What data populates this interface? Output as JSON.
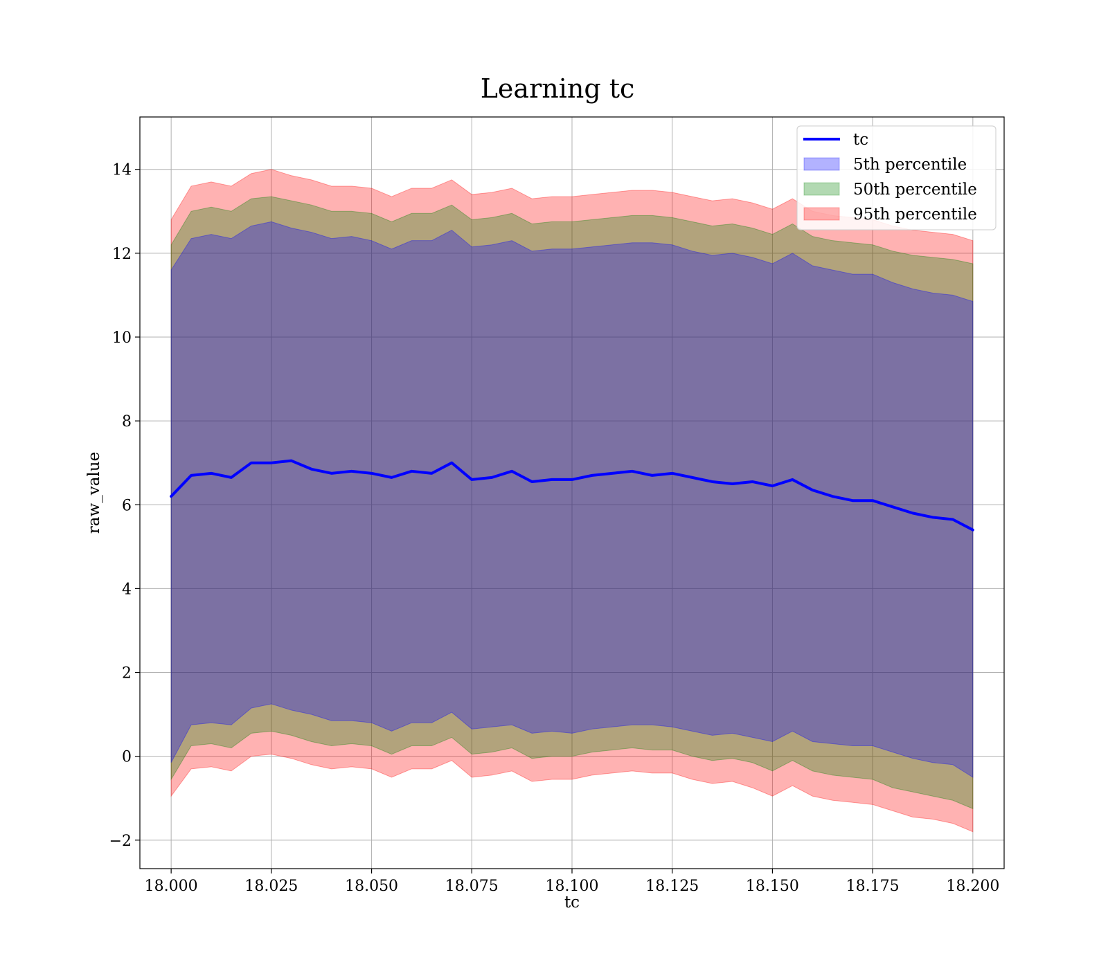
{
  "chart_data": {
    "type": "area",
    "title": "Learning tc",
    "xlabel": "tc",
    "ylabel": "raw_value",
    "xlim": [
      17.9922,
      18.2078
    ],
    "ylim": [
      -2.68,
      15.25
    ],
    "xticks": [
      18.0,
      18.025,
      18.05,
      18.075,
      18.1,
      18.125,
      18.15,
      18.175,
      18.2
    ],
    "xtick_labels": [
      "18.000",
      "18.025",
      "18.050",
      "18.075",
      "18.100",
      "18.125",
      "18.150",
      "18.175",
      "18.200"
    ],
    "yticks": [
      -2,
      0,
      2,
      4,
      6,
      8,
      10,
      12,
      14
    ],
    "ytick_labels": [
      "−2",
      "0",
      "2",
      "4",
      "6",
      "8",
      "10",
      "12",
      "14"
    ],
    "grid": true,
    "legend_position": "top-right",
    "x": [
      18.0,
      18.005,
      18.01,
      18.015,
      18.02,
      18.025,
      18.03,
      18.035,
      18.04,
      18.045,
      18.05,
      18.055,
      18.06,
      18.065,
      18.07,
      18.075,
      18.08,
      18.085,
      18.09,
      18.095,
      18.1,
      18.105,
      18.11,
      18.115,
      18.12,
      18.125,
      18.13,
      18.135,
      18.14,
      18.145,
      18.15,
      18.155,
      18.16,
      18.165,
      18.17,
      18.175,
      18.18,
      18.185,
      18.19,
      18.195,
      18.2
    ],
    "series": [
      {
        "name": "tc",
        "kind": "line",
        "color": "#0000ff",
        "values": [
          6.2,
          6.7,
          6.75,
          6.65,
          7.0,
          7.0,
          7.05,
          6.85,
          6.75,
          6.8,
          6.75,
          6.65,
          6.8,
          6.75,
          7.0,
          6.6,
          6.65,
          6.8,
          6.55,
          6.6,
          6.6,
          6.7,
          6.75,
          6.8,
          6.7,
          6.75,
          6.65,
          6.55,
          6.5,
          6.55,
          6.45,
          6.6,
          6.35,
          6.2,
          6.1,
          6.1,
          5.95,
          5.8,
          5.7,
          5.65,
          5.4
        ]
      },
      {
        "name": "5th percentile",
        "kind": "band",
        "color": "#0000ff",
        "lower": [
          -0.15,
          0.75,
          0.8,
          0.75,
          1.15,
          1.25,
          1.1,
          1.0,
          0.85,
          0.85,
          0.8,
          0.6,
          0.8,
          0.8,
          1.05,
          0.65,
          0.7,
          0.75,
          0.55,
          0.6,
          0.55,
          0.65,
          0.7,
          0.75,
          0.75,
          0.7,
          0.6,
          0.5,
          0.55,
          0.45,
          0.35,
          0.6,
          0.35,
          0.3,
          0.25,
          0.25,
          0.1,
          -0.05,
          -0.15,
          -0.2,
          -0.5
        ],
        "upper": [
          11.6,
          12.35,
          12.45,
          12.35,
          12.65,
          12.75,
          12.6,
          12.5,
          12.35,
          12.4,
          12.3,
          12.1,
          12.3,
          12.3,
          12.55,
          12.15,
          12.2,
          12.3,
          12.05,
          12.1,
          12.1,
          12.15,
          12.2,
          12.25,
          12.25,
          12.2,
          12.05,
          11.95,
          12.0,
          11.9,
          11.75,
          12.0,
          11.7,
          11.6,
          11.5,
          11.5,
          11.3,
          11.15,
          11.05,
          11.0,
          10.85
        ]
      },
      {
        "name": "50th percentile",
        "kind": "band",
        "color": "#008000",
        "lower": [
          -0.55,
          0.25,
          0.3,
          0.2,
          0.55,
          0.6,
          0.5,
          0.35,
          0.25,
          0.3,
          0.25,
          0.05,
          0.25,
          0.25,
          0.45,
          0.05,
          0.1,
          0.2,
          -0.05,
          0.0,
          0.0,
          0.1,
          0.15,
          0.2,
          0.15,
          0.15,
          0.0,
          -0.1,
          -0.05,
          -0.15,
          -0.35,
          -0.1,
          -0.35,
          -0.45,
          -0.5,
          -0.55,
          -0.75,
          -0.85,
          -0.95,
          -1.05,
          -1.25
        ],
        "upper": [
          12.2,
          13.0,
          13.1,
          13.0,
          13.3,
          13.35,
          13.25,
          13.15,
          13.0,
          13.0,
          12.95,
          12.75,
          12.95,
          12.95,
          13.15,
          12.8,
          12.85,
          12.95,
          12.7,
          12.75,
          12.75,
          12.8,
          12.85,
          12.9,
          12.9,
          12.85,
          12.75,
          12.65,
          12.7,
          12.6,
          12.45,
          12.7,
          12.4,
          12.3,
          12.25,
          12.2,
          12.05,
          11.95,
          11.9,
          11.85,
          11.75
        ]
      },
      {
        "name": "95th percentile",
        "kind": "band",
        "color": "#ff0000",
        "lower": [
          -0.95,
          -0.3,
          -0.25,
          -0.35,
          0.0,
          0.05,
          -0.05,
          -0.2,
          -0.3,
          -0.25,
          -0.3,
          -0.5,
          -0.3,
          -0.3,
          -0.1,
          -0.5,
          -0.45,
          -0.35,
          -0.6,
          -0.55,
          -0.55,
          -0.45,
          -0.4,
          -0.35,
          -0.4,
          -0.4,
          -0.55,
          -0.65,
          -0.6,
          -0.75,
          -0.95,
          -0.7,
          -0.95,
          -1.05,
          -1.1,
          -1.15,
          -1.3,
          -1.45,
          -1.5,
          -1.6,
          -1.8
        ],
        "upper": [
          12.8,
          13.6,
          13.7,
          13.6,
          13.9,
          14.0,
          13.85,
          13.75,
          13.6,
          13.6,
          13.55,
          13.35,
          13.55,
          13.55,
          13.75,
          13.4,
          13.45,
          13.55,
          13.3,
          13.35,
          13.35,
          13.4,
          13.45,
          13.5,
          13.5,
          13.45,
          13.35,
          13.25,
          13.3,
          13.2,
          13.05,
          13.3,
          13.0,
          12.9,
          12.85,
          12.8,
          12.65,
          12.55,
          12.5,
          12.45,
          12.3
        ]
      }
    ]
  }
}
